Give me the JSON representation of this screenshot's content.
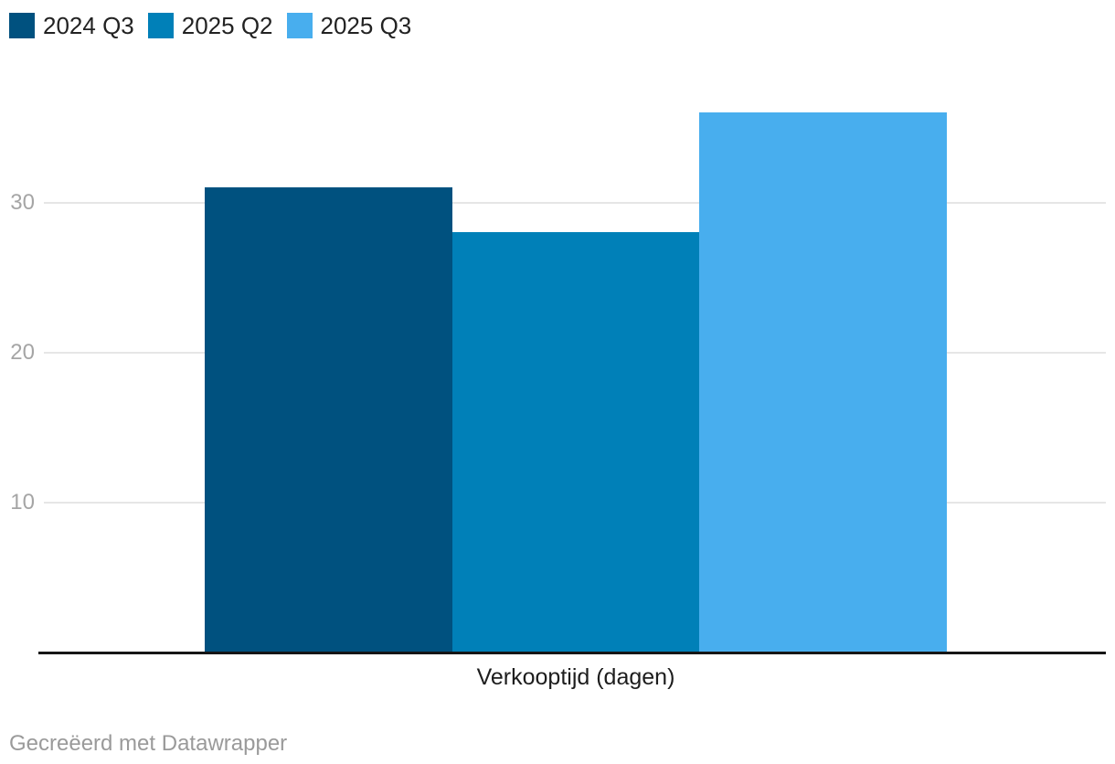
{
  "chart_data": {
    "type": "bar",
    "title": "",
    "xlabel": "Verkooptijd (dagen)",
    "ylabel": "",
    "categories": [
      "Verkooptijd (dagen)"
    ],
    "series": [
      {
        "name": "2024 Q3",
        "values": [
          31
        ],
        "color": "#00517f"
      },
      {
        "name": "2025 Q2",
        "values": [
          28
        ],
        "color": "#0080b8"
      },
      {
        "name": "2025 Q3",
        "values": [
          36
        ],
        "color": "#48aeee"
      }
    ],
    "yticks": [
      10,
      20,
      30
    ],
    "ylim": [
      0,
      40
    ],
    "grid": true,
    "legend_position": "top-left"
  },
  "footer": {
    "prefix": "Gecreëerd met",
    "link_label": "Datawrapper"
  },
  "colors": {
    "background": "#ffffff",
    "gridline": "#e6e6e6",
    "axis_line": "#161616",
    "tick_label": "#a5a5a5",
    "axis_label": "#1d1d1d",
    "legend_text": "#222222",
    "footer_text": "#9a9a9a"
  }
}
